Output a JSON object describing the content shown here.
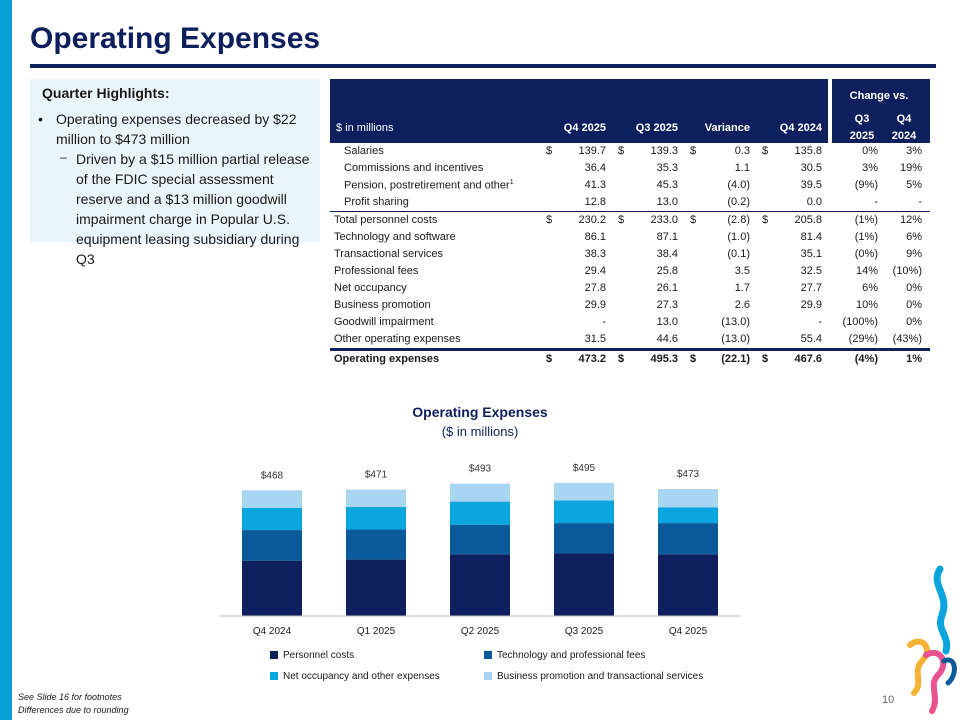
{
  "title": "Operating Expenses",
  "highlights": {
    "heading": "Quarter Highlights:",
    "bullet1": "Operating expenses decreased by $22 million to $473 million",
    "bullet2": "Driven by a $15 million partial release of the FDIC special assessment reserve and a $13 million goodwill impairment charge in Popular U.S. equipment leasing subsidiary during Q3"
  },
  "table": {
    "units": "$ in millions",
    "cols": [
      "Q4 2025",
      "Q3 2025",
      "Variance",
      "Q4 2024"
    ],
    "change_header": "Change vs.",
    "change_cols": [
      [
        "Q3",
        "2025"
      ],
      [
        "Q4",
        "2024"
      ]
    ],
    "rows": [
      {
        "label": "Salaries",
        "vals": [
          "139.7",
          "139.3",
          "0.3",
          "135.8"
        ],
        "chg": [
          "0%",
          "3%"
        ],
        "dollar": true,
        "indent": true
      },
      {
        "label": "Commissions and incentives",
        "vals": [
          "36.4",
          "35.3",
          "1.1",
          "30.5"
        ],
        "chg": [
          "3%",
          "19%"
        ],
        "indent": true
      },
      {
        "label": "Pension, postretirement and other",
        "sup": "1",
        "vals": [
          "41.3",
          "45.3",
          "(4.0)",
          "39.5"
        ],
        "chg": [
          "(9%)",
          "5%"
        ],
        "indent": true
      },
      {
        "label": "Profit sharing",
        "vals": [
          "12.8",
          "13.0",
          "(0.2)",
          "0.0"
        ],
        "chg": [
          "-",
          "-"
        ],
        "indent": true
      },
      {
        "label": "Total personnel costs",
        "vals": [
          "230.2",
          "233.0",
          "(2.8)",
          "205.8"
        ],
        "chg": [
          "(1%)",
          "12%"
        ],
        "dollar": true,
        "total": true
      },
      {
        "label": "Technology and software",
        "vals": [
          "86.1",
          "87.1",
          "(1.0)",
          "81.4"
        ],
        "chg": [
          "(1%)",
          "6%"
        ]
      },
      {
        "label": "Transactional services",
        "vals": [
          "38.3",
          "38.4",
          "(0.1)",
          "35.1"
        ],
        "chg": [
          "(0%)",
          "9%"
        ]
      },
      {
        "label": "Professional fees",
        "vals": [
          "29.4",
          "25.8",
          "3.5",
          "32.5"
        ],
        "chg": [
          "14%",
          "(10%)"
        ]
      },
      {
        "label": "Net occupancy",
        "vals": [
          "27.8",
          "26.1",
          "1.7",
          "27.7"
        ],
        "chg": [
          "6%",
          "0%"
        ]
      },
      {
        "label": "Business promotion",
        "vals": [
          "29.9",
          "27.3",
          "2.6",
          "29.9"
        ],
        "chg": [
          "10%",
          "0%"
        ]
      },
      {
        "label": "Goodwill impairment",
        "vals": [
          "-",
          "13.0",
          "(13.0)",
          "-"
        ],
        "chg": [
          "(100%)",
          "0%"
        ]
      },
      {
        "label": "Other operating expenses",
        "vals": [
          "31.5",
          "44.6",
          "(13.0)",
          "55.4"
        ],
        "chg": [
          "(29%)",
          "(43%)"
        ]
      },
      {
        "label": "Operating expenses",
        "vals": [
          "473.2",
          "495.3",
          "(22.1)",
          "467.6"
        ],
        "chg": [
          "(4%)",
          "1%"
        ],
        "dollar": true,
        "final": true
      }
    ]
  },
  "chart_data": {
    "type": "bar",
    "stacked": true,
    "title": "Operating Expenses",
    "subtitle": "($ in millions)",
    "categories": [
      "Q4 2024",
      "Q1 2025",
      "Q2 2025",
      "Q3 2025",
      "Q4 2025"
    ],
    "totals_labels": [
      "$468",
      "$471",
      "$493",
      "$495",
      "$473"
    ],
    "series": [
      {
        "name": "Personnel costs",
        "color": "#0d1f5c",
        "values": [
          206,
          210,
          230,
          233,
          230
        ]
      },
      {
        "name": "Technology and professional fees",
        "color": "#0b5a9c",
        "values": [
          114,
          112,
          110,
          113,
          116
        ]
      },
      {
        "name": "Net occupancy and other expenses",
        "color": "#0aa5dc",
        "values": [
          83,
          84,
          86,
          84,
          59
        ]
      },
      {
        "name": "Business promotion and transactional services",
        "color": "#a8d5f2",
        "values": [
          65,
          65,
          67,
          66,
          68
        ]
      }
    ],
    "ylim": [
      0,
      540
    ]
  },
  "footer": {
    "note1": "See Slide 16 for footnotes",
    "note2": "Differences due to rounding",
    "page": "10"
  }
}
